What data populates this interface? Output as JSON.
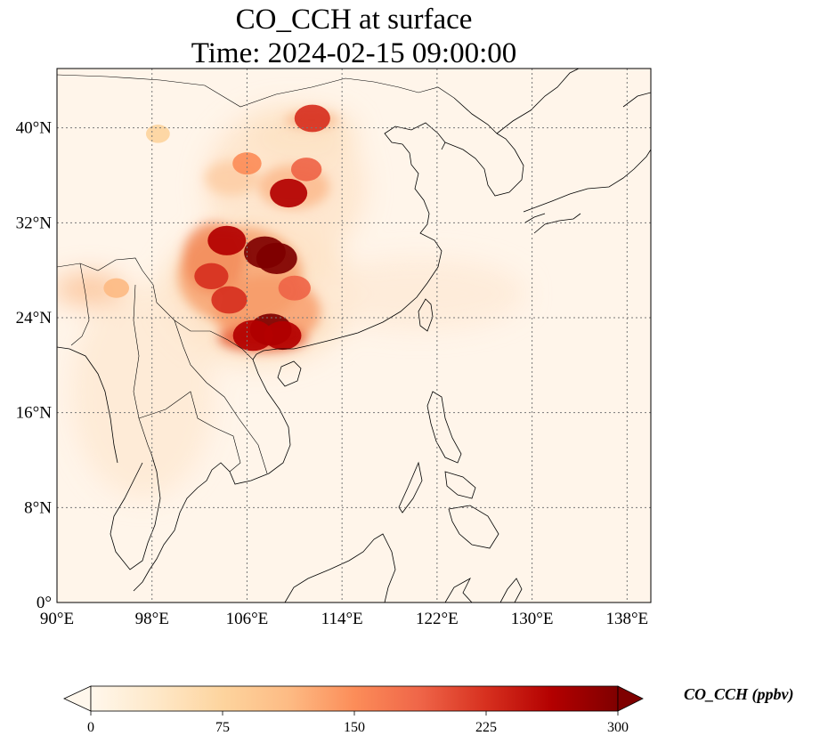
{
  "title": {
    "line1": "CO_CCH at surface",
    "line2": "Time: 2024-02-15 09:00:00"
  },
  "map": {
    "lon_range": [
      90,
      140
    ],
    "lat_range": [
      0,
      45
    ],
    "lon_ticks": [
      90,
      98,
      106,
      114,
      122,
      130,
      138
    ],
    "lon_tick_labels": [
      "90°E",
      "98°E",
      "106°E",
      "114°E",
      "122°E",
      "130°E",
      "138°E"
    ],
    "lat_ticks": [
      0,
      8,
      16,
      24,
      32,
      40
    ],
    "lat_tick_labels": [
      "0°",
      "8°N",
      "16°N",
      "24°N",
      "32°N",
      "40°N"
    ],
    "gridlines": true,
    "gridline_style": "dotted",
    "coastlines": true,
    "country_borders": true,
    "field_variable": "CO_CCH",
    "plume_hotspots": [
      {
        "lon": 107.5,
        "lat": 29.5,
        "value": 300
      },
      {
        "lon": 108.5,
        "lat": 29.0,
        "value": 290
      },
      {
        "lon": 104.3,
        "lat": 30.5,
        "value": 260
      },
      {
        "lon": 103.0,
        "lat": 27.5,
        "value": 210
      },
      {
        "lon": 104.5,
        "lat": 25.5,
        "value": 230
      },
      {
        "lon": 108.0,
        "lat": 23.0,
        "value": 300
      },
      {
        "lon": 106.5,
        "lat": 22.5,
        "value": 280
      },
      {
        "lon": 109.0,
        "lat": 22.5,
        "value": 250
      },
      {
        "lon": 109.5,
        "lat": 34.5,
        "value": 250
      },
      {
        "lon": 111.5,
        "lat": 40.8,
        "value": 230
      },
      {
        "lon": 111.0,
        "lat": 36.5,
        "value": 170
      },
      {
        "lon": 106.0,
        "lat": 37.0,
        "value": 150
      },
      {
        "lon": 110.0,
        "lat": 26.5,
        "value": 190
      },
      {
        "lon": 95.0,
        "lat": 26.5,
        "value": 110
      },
      {
        "lon": 98.5,
        "lat": 39.5,
        "value": 90
      }
    ]
  },
  "colorbar": {
    "colormap": "OrRd",
    "min": 0,
    "max": 300,
    "ticks": [
      0,
      75,
      150,
      225,
      300
    ],
    "tick_labels": [
      "0",
      "75",
      "150",
      "225",
      "300"
    ],
    "extend": "both",
    "label": "CO_CCH (ppbv)",
    "colors": [
      "#fff7ec",
      "#fee8c8",
      "#fdd49e",
      "#fdbb84",
      "#fc8d59",
      "#ef6548",
      "#d7301f",
      "#b30000",
      "#7f0000"
    ]
  }
}
